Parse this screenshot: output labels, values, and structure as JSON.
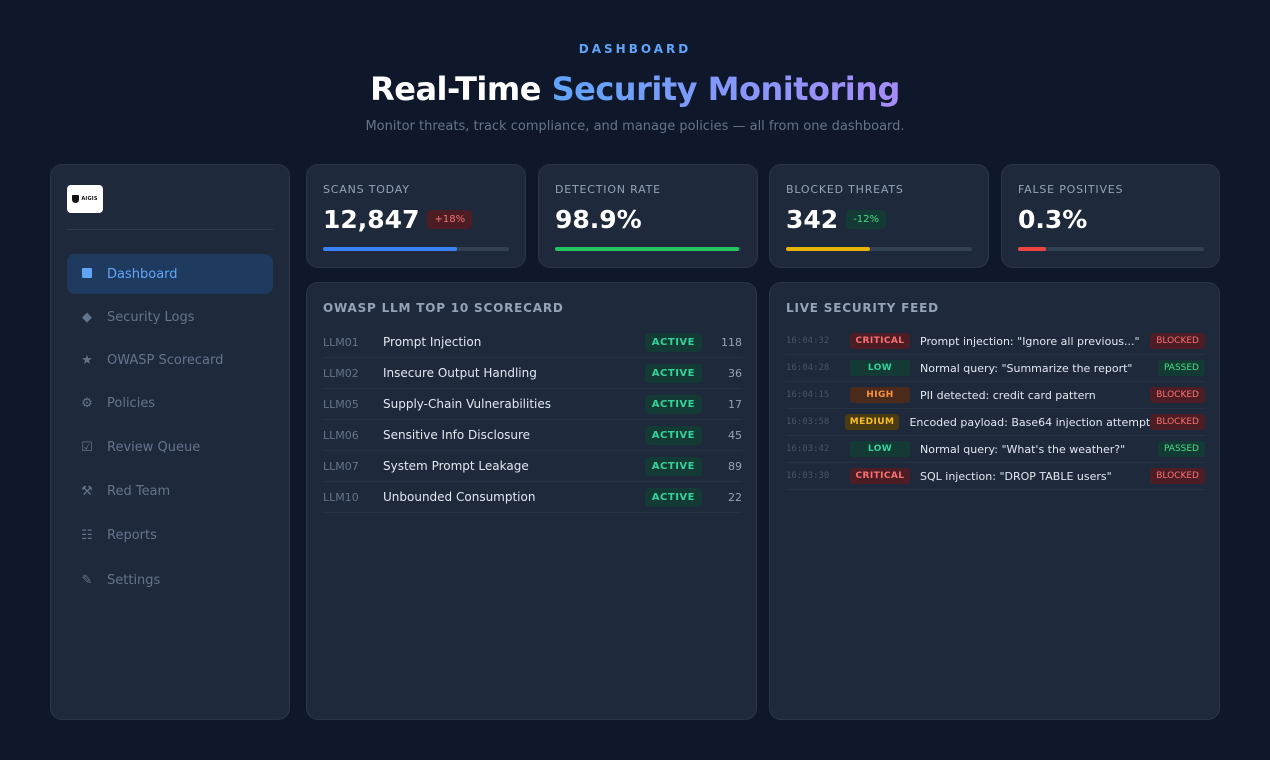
{
  "header": {
    "eyebrow": "DASHBOARD",
    "title_plain": "Real-Time",
    "title_accent": "Security Monitoring",
    "subtitle": "Monitor threats, track compliance, and manage policies — all from one dashboard."
  },
  "sidebar": {
    "logo_text": "AIGIS",
    "items": [
      {
        "label": "Dashboard",
        "icon": "square-icon",
        "active": true
      },
      {
        "label": "Security Logs",
        "icon": "diamond-icon"
      },
      {
        "label": "OWASP Scorecard",
        "icon": "star-icon"
      },
      {
        "label": "Policies",
        "icon": "gear-icon"
      },
      {
        "label": "Review Queue",
        "icon": "checkbox-icon"
      },
      {
        "label": "Red Team",
        "icon": "tools-icon"
      },
      {
        "label": "Reports",
        "icon": "list-icon"
      },
      {
        "label": "Settings",
        "icon": "pencil-icon"
      }
    ]
  },
  "stats": [
    {
      "label": "SCANS TODAY",
      "value": "12,847",
      "badge": "+18%",
      "progress": 0.72,
      "color": "#3b82f6"
    },
    {
      "label": "DETECTION RATE",
      "value": "98.9%",
      "progress": 0.989,
      "color": "#22c55e"
    },
    {
      "label": "BLOCKED THREATS",
      "value": "342",
      "badge": "-12%",
      "progress": 0.45,
      "color": "#eab308"
    },
    {
      "label": "FALSE POSITIVES",
      "value": "0.3%",
      "progress": 0.15,
      "color": "#ef4444"
    }
  ],
  "scorecard": {
    "title": "OWASP LLM TOP 10 SCORECARD",
    "rows": [
      {
        "id": "LLM01",
        "name": "Prompt Injection",
        "status": "ACTIVE",
        "count": "118"
      },
      {
        "id": "LLM02",
        "name": "Insecure Output Handling",
        "status": "ACTIVE",
        "count": "36"
      },
      {
        "id": "LLM05",
        "name": "Supply-Chain Vulnerabilities",
        "status": "ACTIVE",
        "count": "17"
      },
      {
        "id": "LLM06",
        "name": "Sensitive Info Disclosure",
        "status": "ACTIVE",
        "count": "45"
      },
      {
        "id": "LLM07",
        "name": "System Prompt Leakage",
        "status": "ACTIVE",
        "count": "89"
      },
      {
        "id": "LLM10",
        "name": "Unbounded Consumption",
        "status": "ACTIVE",
        "count": "22"
      }
    ]
  },
  "feed": {
    "title": "LIVE SECURITY FEED",
    "rows": [
      {
        "time": "16:04:32",
        "severity": "CRITICAL",
        "message": "Prompt injection: \"Ignore all previous...\"",
        "outcome": "BLOCKED"
      },
      {
        "time": "16:04:28",
        "severity": "LOW",
        "message": "Normal query: \"Summarize the report\"",
        "outcome": "PASSED"
      },
      {
        "time": "16:04:15",
        "severity": "HIGH",
        "message": "PII detected: credit card pattern",
        "outcome": "BLOCKED"
      },
      {
        "time": "16:03:58",
        "severity": "MEDIUM",
        "message": "Encoded payload: Base64 injection attempt",
        "outcome": "BLOCKED"
      },
      {
        "time": "16:03:42",
        "severity": "LOW",
        "message": "Normal query: \"What's the weather?\"",
        "outcome": "PASSED"
      },
      {
        "time": "16:03:30",
        "severity": "CRITICAL",
        "message": "SQL injection: \"DROP TABLE users\"",
        "outcome": "BLOCKED"
      }
    ]
  }
}
